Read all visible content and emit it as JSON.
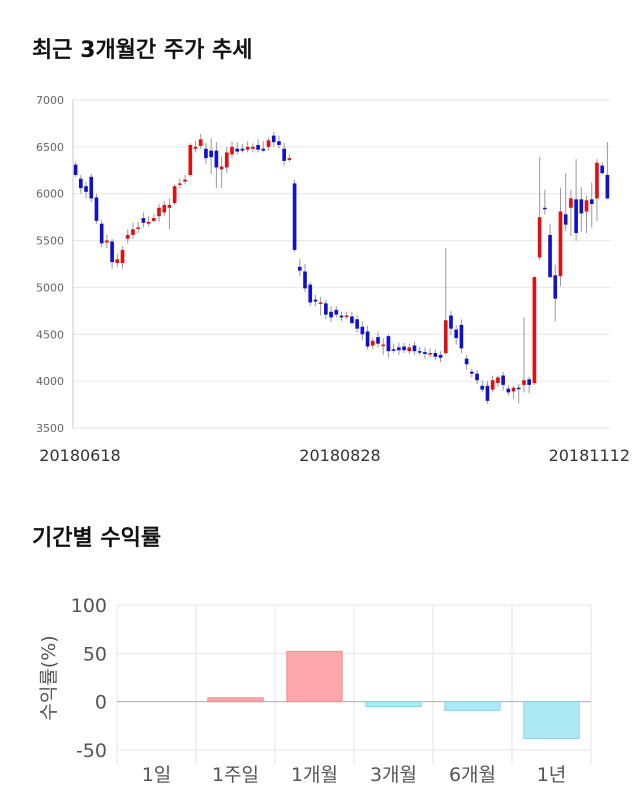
{
  "sections": {
    "price_title": "최근 3개월간 주가 추세",
    "returns_title": "기간별 수익률"
  },
  "chart_data": [
    {
      "type": "candlestick",
      "title": "최근 3개월간 주가 추세",
      "ylim": [
        3500,
        7000
      ],
      "yticks": [
        3500,
        4000,
        4500,
        5000,
        5500,
        6000,
        6500,
        7000
      ],
      "x_tick_labels": [
        "20180618",
        "20180828",
        "20181112"
      ],
      "grid": true,
      "colors": {
        "up": "#dd1111",
        "down": "#1111cc",
        "wick": "#999999"
      },
      "candles": [
        [
          6310,
          6200,
          6340,
          6180
        ],
        [
          6160,
          6060,
          6200,
          6000
        ],
        [
          6080,
          6020,
          6130,
          5950
        ],
        [
          6180,
          5950,
          6210,
          5910
        ],
        [
          5960,
          5710,
          6000,
          5680
        ],
        [
          5680,
          5470,
          5720,
          5430
        ],
        [
          5480,
          5500,
          5560,
          5420
        ],
        [
          5490,
          5270,
          5520,
          5200
        ],
        [
          5260,
          5300,
          5360,
          5220
        ],
        [
          5260,
          5400,
          5440,
          5200
        ],
        [
          5520,
          5560,
          5620,
          5470
        ],
        [
          5560,
          5620,
          5690,
          5520
        ],
        [
          5630,
          5640,
          5700,
          5580
        ],
        [
          5740,
          5690,
          5800,
          5640
        ],
        [
          5680,
          5700,
          5760,
          5650
        ],
        [
          5710,
          5740,
          5780,
          5700
        ],
        [
          5760,
          5850,
          5890,
          5700
        ],
        [
          5800,
          5880,
          5920,
          5760
        ],
        [
          5850,
          5880,
          5950,
          5620
        ],
        [
          5900,
          6080,
          6100,
          5880
        ],
        [
          6100,
          6110,
          6160,
          6060
        ],
        [
          6130,
          6150,
          6200,
          6100
        ],
        [
          6200,
          6520,
          6540,
          6180
        ],
        [
          6480,
          6500,
          6560,
          6440
        ],
        [
          6510,
          6580,
          6640,
          6480
        ],
        [
          6480,
          6380,
          6540,
          6320
        ],
        [
          6460,
          6390,
          6590,
          6210
        ],
        [
          6460,
          6280,
          6550,
          6060
        ],
        [
          6260,
          6290,
          6400,
          6060
        ],
        [
          6280,
          6440,
          6500,
          6220
        ],
        [
          6420,
          6500,
          6560,
          6380
        ],
        [
          6480,
          6450,
          6550,
          6420
        ],
        [
          6480,
          6460,
          6530,
          6440
        ],
        [
          6470,
          6500,
          6560,
          6440
        ],
        [
          6480,
          6500,
          6540,
          6440
        ],
        [
          6520,
          6470,
          6580,
          6440
        ],
        [
          6480,
          6460,
          6560,
          6440
        ],
        [
          6500,
          6570,
          6600,
          6460
        ],
        [
          6620,
          6550,
          6660,
          6500
        ],
        [
          6560,
          6520,
          6620,
          6480
        ],
        [
          6480,
          6350,
          6540,
          6300
        ],
        [
          6360,
          6380,
          6420,
          6340
        ],
        [
          6110,
          5400,
          6150,
          5380
        ],
        [
          5220,
          5180,
          5300,
          5120
        ],
        [
          5170,
          4990,
          5250,
          4950
        ],
        [
          5030,
          4840,
          5060,
          4800
        ],
        [
          4870,
          4850,
          4920,
          4800
        ],
        [
          4840,
          4840,
          4900,
          4700
        ],
        [
          4830,
          4710,
          4870,
          4660
        ],
        [
          4740,
          4680,
          4800,
          4630
        ],
        [
          4760,
          4710,
          4800,
          4680
        ],
        [
          4700,
          4680,
          4740,
          4640
        ],
        [
          4700,
          4700,
          4740,
          4660
        ],
        [
          4690,
          4620,
          4740,
          4600
        ],
        [
          4660,
          4560,
          4700,
          4520
        ],
        [
          4580,
          4500,
          4640,
          4440
        ],
        [
          4530,
          4370,
          4590,
          4340
        ],
        [
          4380,
          4430,
          4460,
          4340
        ],
        [
          4470,
          4400,
          4530,
          4360
        ],
        [
          4390,
          4390,
          4460,
          4280
        ],
        [
          4480,
          4320,
          4500,
          4250
        ],
        [
          4340,
          4330,
          4400,
          4300
        ],
        [
          4360,
          4330,
          4410,
          4280
        ],
        [
          4370,
          4330,
          4410,
          4300
        ],
        [
          4320,
          4360,
          4400,
          4290
        ],
        [
          4380,
          4320,
          4420,
          4280
        ],
        [
          4320,
          4310,
          4370,
          4280
        ],
        [
          4310,
          4290,
          4360,
          4240
        ],
        [
          4290,
          4300,
          4350,
          4250
        ],
        [
          4300,
          4260,
          4340,
          4220
        ],
        [
          4280,
          4250,
          4320,
          4200
        ],
        [
          4300,
          4650,
          5420,
          4280
        ],
        [
          4700,
          4560,
          4750,
          4490
        ],
        [
          4550,
          4460,
          4600,
          4390
        ],
        [
          4600,
          4350,
          4660,
          4300
        ],
        [
          4240,
          4180,
          4280,
          4120
        ],
        [
          4100,
          4080,
          4130,
          4040
        ],
        [
          4080,
          4010,
          4120,
          3970
        ],
        [
          3950,
          3910,
          4010,
          3880
        ],
        [
          3950,
          3790,
          4000,
          3760
        ],
        [
          3910,
          4010,
          4060,
          3880
        ],
        [
          3980,
          4040,
          4060,
          3940
        ],
        [
          4060,
          3960,
          4100,
          3900
        ],
        [
          3920,
          3880,
          3960,
          3850
        ],
        [
          3890,
          3930,
          3950,
          3810
        ],
        [
          3930,
          3920,
          3970,
          3760
        ],
        [
          3960,
          4010,
          4680,
          3880
        ],
        [
          4020,
          3960,
          4050,
          3870
        ],
        [
          3980,
          5110,
          5120,
          3960
        ],
        [
          5320,
          5750,
          6390,
          5290
        ],
        [
          5850,
          5840,
          6040,
          5780
        ],
        [
          5560,
          5110,
          5680,
          5100
        ],
        [
          5130,
          4880,
          5240,
          4640
        ],
        [
          5120,
          5810,
          6060,
          5010
        ],
        [
          5780,
          5670,
          6220,
          5600
        ],
        [
          5850,
          5950,
          6040,
          5550
        ],
        [
          5940,
          5580,
          6370,
          5500
        ],
        [
          5940,
          5790,
          6070,
          5590
        ],
        [
          5810,
          5930,
          5980,
          5580
        ],
        [
          5940,
          5890,
          6120,
          5640
        ],
        [
          5950,
          6330,
          6370,
          5710
        ],
        [
          6300,
          6220,
          6340,
          6200
        ],
        [
          6200,
          5950,
          6550,
          5940
        ]
      ]
    },
    {
      "type": "bar",
      "title": "기간별 수익률",
      "ylabel": "수익률(%)",
      "ylim": [
        -50,
        100
      ],
      "yticks": [
        -50,
        0,
        50,
        100
      ],
      "categories": [
        "1일",
        "1주일",
        "1개월",
        "3개월",
        "6개월",
        "1년"
      ],
      "values": [
        0,
        4,
        52,
        -5,
        -9,
        -38
      ],
      "grid": true,
      "colors": {
        "positive": "#ffa8ac",
        "negative": "#aee9f6"
      }
    }
  ]
}
